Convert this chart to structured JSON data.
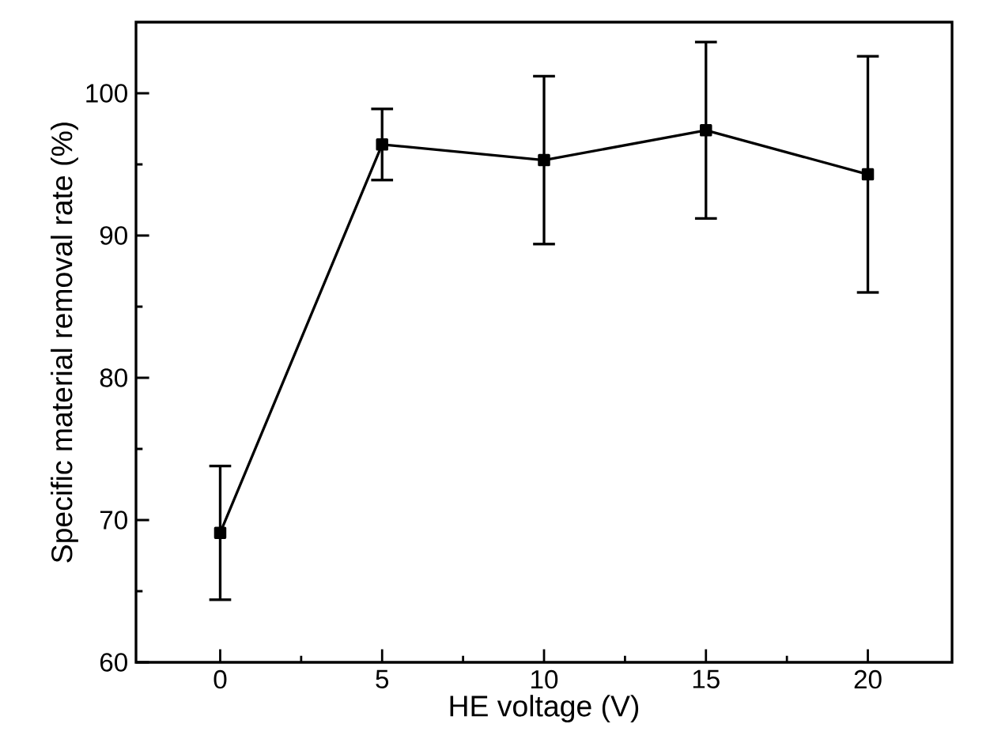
{
  "chart_data": {
    "type": "line",
    "xlabel": "HE voltage (V)",
    "ylabel": "Specific material removal rate (%)",
    "x": [
      0,
      5,
      10,
      15,
      20
    ],
    "series": [
      {
        "color": "#000000",
        "values": [
          69.1,
          96.4,
          95.3,
          97.4,
          94.3
        ],
        "errors": [
          4.7,
          2.5,
          5.9,
          6.2,
          8.3
        ]
      }
    ],
    "xlim": [
      -2.6,
      22.6
    ],
    "ylim": [
      60,
      105
    ],
    "xticks": [
      0,
      5,
      10,
      15,
      20
    ],
    "yticks": [
      60,
      70,
      80,
      90,
      100
    ],
    "marker": "square",
    "line_style": "solid",
    "grid": false
  }
}
